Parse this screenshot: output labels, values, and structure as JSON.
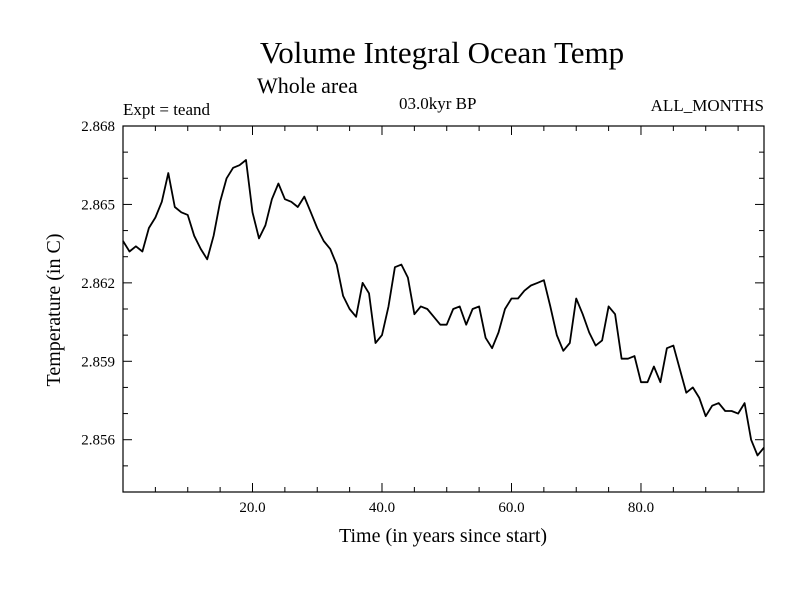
{
  "chart_data": {
    "type": "line",
    "title": "Volume Integral Ocean Temp",
    "subtitle": "Whole area",
    "annotations": {
      "experiment": "Expt = teand",
      "period": "03.0kyr BP",
      "months": "ALL_MONTHS"
    },
    "xlabel": "Time (in years since start)",
    "ylabel": "Temperature (in C)",
    "xlim": [
      0,
      99
    ],
    "ylim": [
      2.854,
      2.868
    ],
    "x_ticks": [
      20,
      40,
      60,
      80
    ],
    "x_tick_labels": [
      "20.0",
      "40.0",
      "60.0",
      "80.0"
    ],
    "y_ticks": [
      2.856,
      2.859,
      2.862,
      2.865,
      2.868
    ],
    "y_tick_labels": [
      "2.856",
      "2.859",
      "2.862",
      "2.865",
      "2.868"
    ],
    "grid": false,
    "series": [
      {
        "name": "teand",
        "color": "#000000",
        "x": [
          0,
          1,
          2,
          3,
          4,
          5,
          6,
          7,
          8,
          9,
          10,
          11,
          12,
          13,
          14,
          15,
          16,
          17,
          18,
          19,
          20,
          21,
          22,
          23,
          24,
          25,
          26,
          27,
          28,
          29,
          30,
          31,
          32,
          33,
          34,
          35,
          36,
          37,
          38,
          39,
          40,
          41,
          42,
          43,
          44,
          45,
          46,
          47,
          48,
          49,
          50,
          51,
          52,
          53,
          54,
          55,
          56,
          57,
          58,
          59,
          60,
          61,
          62,
          63,
          64,
          65,
          66,
          67,
          68,
          69,
          70,
          71,
          72,
          73,
          74,
          75,
          76,
          77,
          78,
          79,
          80,
          81,
          82,
          83,
          84,
          85,
          86,
          87,
          88,
          89,
          90,
          91,
          92,
          93,
          94,
          95,
          96,
          97,
          98,
          99
        ],
        "values": [
          2.8636,
          2.8632,
          2.8634,
          2.8632,
          2.8641,
          2.8645,
          2.8651,
          2.8662,
          2.8649,
          2.8647,
          2.8646,
          2.8638,
          2.8633,
          2.8629,
          2.8638,
          2.8651,
          2.866,
          2.8664,
          2.8665,
          2.8667,
          2.8647,
          2.8637,
          2.8642,
          2.8652,
          2.8658,
          2.8652,
          2.8651,
          2.8649,
          2.8653,
          2.8647,
          2.8641,
          2.8636,
          2.8633,
          2.8627,
          2.8615,
          2.861,
          2.8607,
          2.862,
          2.8616,
          2.8597,
          2.86,
          2.8611,
          2.8626,
          2.8627,
          2.8622,
          2.8608,
          2.8611,
          2.861,
          2.8607,
          2.8604,
          2.8604,
          2.861,
          2.8611,
          2.8604,
          2.861,
          2.8611,
          2.8599,
          2.8595,
          2.8601,
          2.861,
          2.8614,
          2.8614,
          2.8617,
          2.8619,
          2.862,
          2.8621,
          2.8611,
          2.86,
          2.8594,
          2.8597,
          2.8614,
          2.8608,
          2.8601,
          2.8596,
          2.8598,
          2.8611,
          2.8608,
          2.8591,
          2.8591,
          2.8592,
          2.8582,
          2.8582,
          2.8588,
          2.8582,
          2.8595,
          2.8596,
          2.8587,
          2.8578,
          2.858,
          2.8576,
          2.8569,
          2.8573,
          2.8574,
          2.8571,
          2.8571,
          2.857,
          2.8574,
          2.856,
          2.8554,
          2.8557
        ]
      }
    ]
  }
}
